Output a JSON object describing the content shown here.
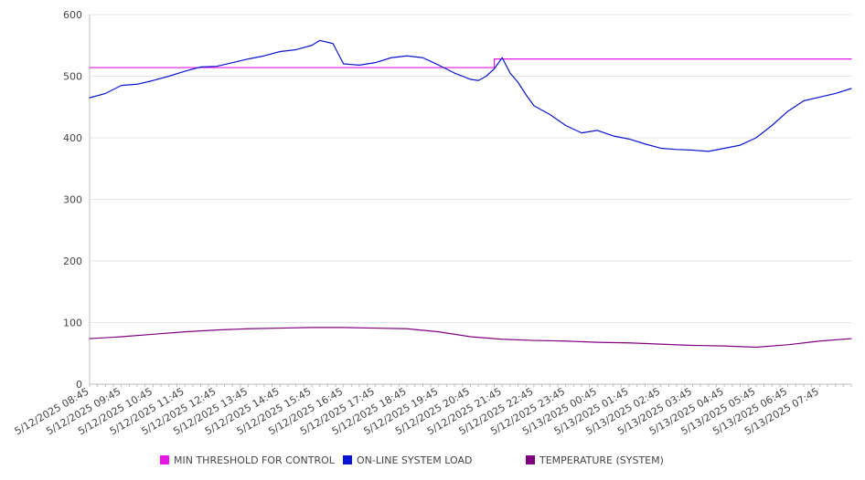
{
  "chart_data": {
    "type": "line",
    "title": "",
    "xlabel": "",
    "ylabel": "",
    "ylim": [
      0,
      600
    ],
    "y_ticks": [
      "0",
      "100",
      "200",
      "300",
      "400",
      "500",
      "600"
    ],
    "x_tick_labels": [
      "5/12/2025 08:45",
      "5/12/2025 09:45",
      "5/12/2025 10:45",
      "5/12/2025 11:45",
      "5/12/2025 12:45",
      "5/12/2025 13:45",
      "5/12/2025 14:45",
      "5/12/2025 15:45",
      "5/12/2025 16:45",
      "5/12/2025 17:45",
      "5/12/2025 18:45",
      "5/12/2025 19:45",
      "5/12/2025 20:45",
      "5/12/2025 21:45",
      "5/12/2025 22:45",
      "5/12/2025 23:45",
      "5/13/2025 00:45",
      "5/13/2025 01:45",
      "5/13/2025 02:45",
      "5/13/2025 03:45",
      "5/13/2025 04:45",
      "5/13/2025 05:45",
      "5/13/2025 06:45",
      "5/13/2025 07:45"
    ],
    "grid": "horizontal",
    "legend_position": "bottom",
    "x_start": "5/12/2025 08:45",
    "x_end": "5/13/2025 08:45",
    "series": [
      {
        "name": "MIN THRESHOLD FOR CONTROL",
        "color": "#e619e6",
        "x": [
          "5/12/2025 08:45",
          "5/12/2025 21:30",
          "5/12/2025 21:30",
          "5/13/2025 08:45"
        ],
        "values": [
          514,
          514,
          528,
          528
        ]
      },
      {
        "name": "ON-LINE SYSTEM LOAD",
        "color": "#0a14d2",
        "x": [
          "5/12/2025 08:45",
          "5/12/2025 09:15",
          "5/12/2025 09:45",
          "5/12/2025 10:15",
          "5/12/2025 10:45",
          "5/12/2025 11:15",
          "5/12/2025 11:45",
          "5/12/2025 12:15",
          "5/12/2025 12:45",
          "5/12/2025 13:15",
          "5/12/2025 13:45",
          "5/12/2025 14:15",
          "5/12/2025 14:45",
          "5/12/2025 15:15",
          "5/12/2025 15:45",
          "5/12/2025 16:00",
          "5/12/2025 16:25",
          "5/12/2025 16:45",
          "5/12/2025 17:15",
          "5/12/2025 17:45",
          "5/12/2025 18:15",
          "5/12/2025 18:45",
          "5/12/2025 19:15",
          "5/12/2025 19:45",
          "5/12/2025 20:15",
          "5/12/2025 20:45",
          "5/12/2025 21:00",
          "5/12/2025 21:15",
          "5/12/2025 21:30",
          "5/12/2025 21:45",
          "5/12/2025 22:00",
          "5/12/2025 22:15",
          "5/12/2025 22:30",
          "5/12/2025 22:45",
          "5/12/2025 23:15",
          "5/12/2025 23:45",
          "5/13/2025 00:15",
          "5/13/2025 00:45",
          "5/13/2025 01:15",
          "5/13/2025 01:45",
          "5/13/2025 02:15",
          "5/13/2025 02:45",
          "5/13/2025 03:15",
          "5/13/2025 03:45",
          "5/13/2025 04:15",
          "5/13/2025 04:45",
          "5/13/2025 05:15",
          "5/13/2025 05:45",
          "5/13/2025 06:15",
          "5/13/2025 06:45",
          "5/13/2025 07:15",
          "5/13/2025 07:45",
          "5/13/2025 08:15",
          "5/13/2025 08:45"
        ],
        "values": [
          465,
          472,
          485,
          487,
          493,
          500,
          508,
          515,
          516,
          522,
          528,
          533,
          540,
          543,
          550,
          558,
          553,
          520,
          518,
          522,
          530,
          533,
          530,
          518,
          505,
          495,
          493,
          500,
          512,
          530,
          505,
          490,
          470,
          452,
          438,
          420,
          408,
          412,
          403,
          398,
          390,
          383,
          381,
          380,
          378,
          383,
          388,
          400,
          420,
          443,
          460,
          466,
          472,
          480
        ]
      },
      {
        "name": "TEMPERATURE (SYSTEM)",
        "color": "#800080",
        "x": [
          "5/12/2025 08:45",
          "5/12/2025 09:45",
          "5/12/2025 10:45",
          "5/12/2025 11:45",
          "5/12/2025 12:45",
          "5/12/2025 13:45",
          "5/12/2025 14:45",
          "5/12/2025 15:45",
          "5/12/2025 16:45",
          "5/12/2025 17:45",
          "5/12/2025 18:45",
          "5/12/2025 19:45",
          "5/12/2025 20:45",
          "5/12/2025 21:45",
          "5/12/2025 22:45",
          "5/12/2025 23:45",
          "5/13/2025 00:45",
          "5/13/2025 01:45",
          "5/13/2025 02:45",
          "5/13/2025 03:45",
          "5/13/2025 04:45",
          "5/13/2025 05:45",
          "5/13/2025 06:45",
          "5/13/2025 07:45",
          "5/13/2025 08:45"
        ],
        "values": [
          74,
          77,
          81,
          85,
          88,
          90,
          91,
          92,
          92,
          91,
          90,
          85,
          77,
          73,
          71,
          70,
          68,
          67,
          65,
          63,
          62,
          60,
          64,
          70,
          74
        ]
      }
    ]
  }
}
